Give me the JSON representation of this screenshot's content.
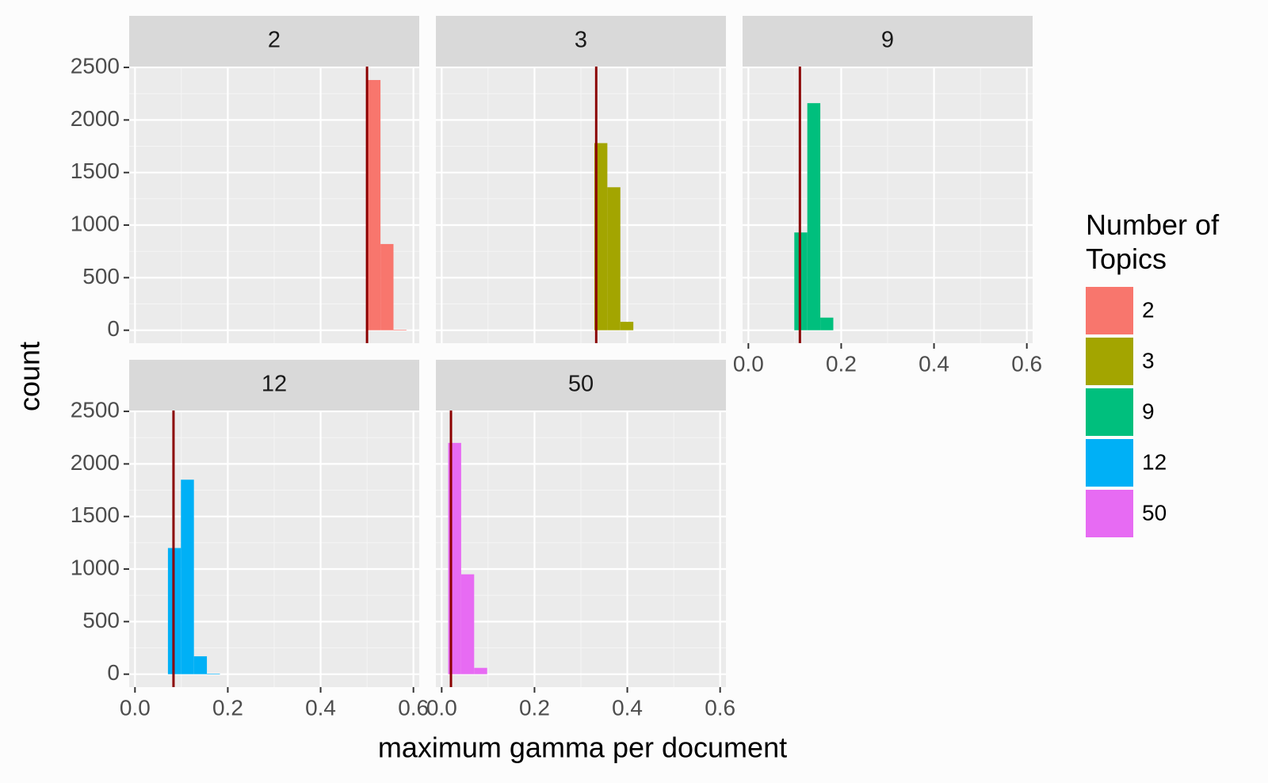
{
  "chart_data": [
    {
      "type": "histogram",
      "title": "2",
      "color": "#F8766D",
      "bins": [
        0.501,
        0.529,
        0.557,
        0.585
      ],
      "values": [
        2380,
        820,
        5
      ],
      "vline": {
        "value": 0.5,
        "color": "#8B0000"
      },
      "xlim": [
        -0.0125,
        0.6125
      ],
      "xticks": [
        {
          "value": 0,
          "label": "0.0"
        },
        0.2,
        0.4,
        0.6
      ],
      "ylim": [
        -123,
        2508
      ],
      "yticks": [
        0,
        500,
        1000,
        1500,
        2000,
        2500
      ],
      "grid": true
    },
    {
      "type": "histogram",
      "title": "3",
      "color": "#A3A500",
      "bins": [
        0.329,
        0.357,
        0.385,
        0.413
      ],
      "values": [
        1780,
        1360,
        80
      ],
      "vline": {
        "value": 0.333,
        "color": "#8B0000"
      },
      "xlim": [
        -0.0125,
        0.6125
      ],
      "xticks": [
        {
          "value": 0,
          "label": "0.0"
        },
        0.2,
        0.4,
        0.6
      ],
      "ylim": [
        -123,
        2508
      ],
      "yticks": [
        0,
        500,
        1000,
        1500,
        2000,
        2500
      ],
      "grid": true
    },
    {
      "type": "histogram",
      "title": "9",
      "color": "#00BF7D",
      "bins": [
        0.099,
        0.127,
        0.155,
        0.183
      ],
      "values": [
        930,
        2160,
        120
      ],
      "vline": {
        "value": 0.111,
        "color": "#8B0000"
      },
      "xlim": [
        -0.0125,
        0.6125
      ],
      "xticks": [
        {
          "value": 0,
          "label": "0.0"
        },
        0.2,
        0.4,
        0.6
      ],
      "ylim": [
        -123,
        2508
      ],
      "yticks": [
        0,
        500,
        1000,
        1500,
        2000,
        2500
      ],
      "grid": true
    },
    {
      "type": "histogram",
      "title": "12",
      "color": "#00B0F6",
      "bins": [
        0.071,
        0.099,
        0.127,
        0.155,
        0.183
      ],
      "values": [
        1200,
        1850,
        170,
        5
      ],
      "vline": {
        "value": 0.083,
        "color": "#8B0000"
      },
      "xlim": [
        -0.0125,
        0.6125
      ],
      "xticks": [
        {
          "value": 0,
          "label": "0.0"
        },
        0.2,
        0.4,
        0.6
      ],
      "ylim": [
        -123,
        2508
      ],
      "yticks": [
        0,
        500,
        1000,
        1500,
        2000,
        2500
      ],
      "grid": true
    },
    {
      "type": "histogram",
      "title": "50",
      "color": "#E76BF3",
      "bins": [
        0.014,
        0.042,
        0.07,
        0.098
      ],
      "values": [
        2200,
        950,
        60
      ],
      "vline": {
        "value": 0.02,
        "color": "#8B0000"
      },
      "xlim": [
        -0.0125,
        0.6125
      ],
      "xticks": [
        {
          "value": 0,
          "label": "0.0"
        },
        0.2,
        0.4,
        0.6
      ],
      "ylim": [
        -123,
        2508
      ],
      "yticks": [
        0,
        500,
        1000,
        1500,
        2000,
        2500
      ],
      "grid": true
    }
  ],
  "x_label": "maximum gamma per document",
  "y_label": "count",
  "legend_title": "Number of Topics"
}
